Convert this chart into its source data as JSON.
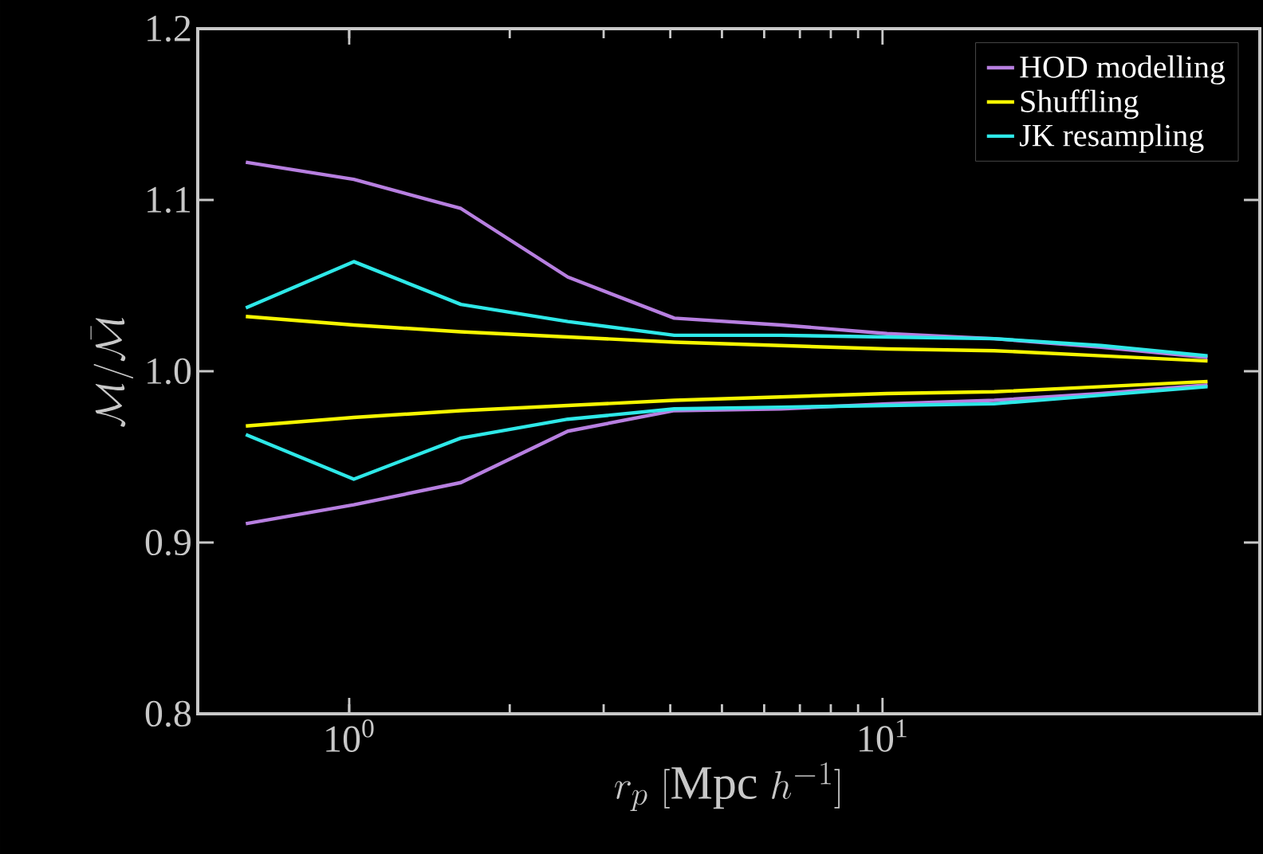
{
  "chart_data": {
    "type": "line",
    "xlabel": "r_p\\ [\\mathrm{Mpc}\\ h^{-1}]",
    "ylabel": "\\mathcal{M}/\\bar{\\mathcal{M}}",
    "log": "x",
    "legend": "top right",
    "grid": false,
    "marker": "none",
    "line_style": "solid",
    "x": [
      0.64,
      1.02,
      1.62,
      2.57,
      4.07,
      6.45,
      10.2,
      16.2,
      25.7,
      40.7
    ],
    "xlim": [
      0.52,
      51
    ],
    "xticks": [
      {
        "value": 1,
        "label": "10$^{0}$"
      },
      {
        "value": 10,
        "label": "10$^{1}$"
      }
    ],
    "ylim": [
      0.8,
      1.2
    ],
    "yticks": [
      0.8,
      0.9,
      {
        "value": 1,
        "label": "1.0"
      },
      1.1,
      1.2
    ],
    "series": [
      {
        "name": "HOD modelling",
        "color": "#b77fe0",
        "values": [
          1.122,
          1.112,
          1.095,
          1.055,
          1.031,
          1.027,
          1.022,
          1.019,
          1.014,
          1.008
        ]
      },
      {
        "color": "#b77fe0",
        "values": [
          0.911,
          0.922,
          0.935,
          0.965,
          0.977,
          0.978,
          0.981,
          0.983,
          0.987,
          0.992
        ]
      },
      {
        "name": "Shuffling",
        "color": "#f5f500",
        "values": [
          1.032,
          1.027,
          1.023,
          1.02,
          1.017,
          1.015,
          1.013,
          1.012,
          1.009,
          1.006
        ]
      },
      {
        "color": "#f5f500",
        "values": [
          0.968,
          0.973,
          0.977,
          0.98,
          0.983,
          0.985,
          0.987,
          0.988,
          0.991,
          0.994
        ]
      },
      {
        "name": "JK resampling",
        "color": "#2ee8e8",
        "values": [
          1.037,
          1.064,
          1.039,
          1.029,
          1.021,
          1.021,
          1.02,
          1.019,
          1.015,
          1.009
        ]
      },
      {
        "color": "#2ee8e8",
        "values": [
          0.963,
          0.937,
          0.961,
          0.972,
          0.978,
          0.979,
          0.98,
          0.981,
          0.986,
          0.991
        ]
      }
    ]
  }
}
